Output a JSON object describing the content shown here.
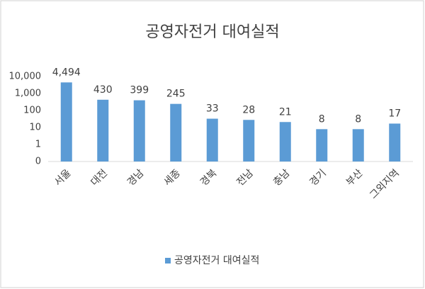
{
  "chart_data": {
    "type": "bar",
    "title": "공영자전거 대여실적",
    "categories": [
      "서울",
      "대전",
      "경남",
      "세종",
      "경북",
      "전남",
      "충남",
      "경기",
      "부산",
      "그외지역"
    ],
    "series": [
      {
        "name": "공영자전거 대여실적",
        "color": "#5b9bd5",
        "values": [
          4494,
          430,
          399,
          245,
          33,
          28,
          21,
          8,
          8,
          17
        ],
        "value_labels": [
          "4,494",
          "430",
          "399",
          "245",
          "33",
          "28",
          "21",
          "8",
          "8",
          "17"
        ]
      }
    ],
    "log_scale": true,
    "ylim": [
      0.1,
      10000
    ],
    "yticks": [
      {
        "value": 0.1,
        "label": "0"
      },
      1,
      10,
      100,
      {
        "value": 1000,
        "label": "1,000"
      },
      {
        "value": 10000,
        "label": "10,000"
      }
    ],
    "grid": false,
    "legend": "bottom"
  }
}
